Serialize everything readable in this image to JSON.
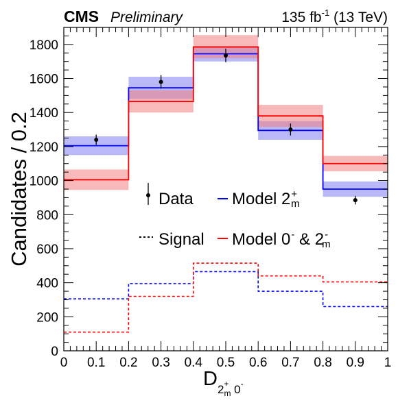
{
  "header": {
    "experiment": "CMS",
    "status": "Preliminary",
    "lumi_value": "135 fb",
    "lumi_exp": "-1",
    "lumi_energy": " (13 TeV)"
  },
  "axes": {
    "ylabel": "Candidates / 0.2",
    "xlabel_main": "D",
    "xlabel_sub_a": "2",
    "xlabel_sub_a_sup": "+",
    "xlabel_sub_a_sub": "m",
    "xlabel_sub_b": " 0",
    "xlabel_sub_b_sup": "-"
  },
  "legend": {
    "data": "Data",
    "signal": "Signal",
    "model_2m": "Model 2",
    "model_2m_sup": "+",
    "model_2m_sub": "m",
    "model_0_2m_a": "Model 0",
    "model_0_2m_a_sup": "-",
    "model_0_2m_b": " & 2",
    "model_0_2m_b_sup": "-",
    "model_0_2m_b_sub": "m"
  },
  "colors": {
    "blue": "#0000ff",
    "red": "#ff0000",
    "blue_band": "#8080f0",
    "red_band": "#f08080",
    "data": "#000000"
  },
  "chart_data": {
    "type": "bar",
    "xlim": [
      0,
      1
    ],
    "ylim": [
      0,
      1900
    ],
    "xticks": [
      0,
      0.1,
      0.2,
      0.3,
      0.4,
      0.5,
      0.6,
      0.7,
      0.8,
      0.9,
      1
    ],
    "xtick_labels": [
      "0",
      "0.1",
      "0.2",
      "0.3",
      "0.4",
      "0.5",
      "0.6",
      "0.7",
      "0.8",
      "0.9",
      "1"
    ],
    "yticks": [
      0,
      200,
      400,
      600,
      800,
      1000,
      1200,
      1400,
      1600,
      1800
    ],
    "ytick_labels": [
      "0",
      "200",
      "400",
      "600",
      "800",
      "1000",
      "1200",
      "1400",
      "1600",
      "1800"
    ],
    "bin_edges": [
      0,
      0.2,
      0.4,
      0.6,
      0.8,
      1.0
    ],
    "series": [
      {
        "name": "Data",
        "style": "points",
        "x": [
          0.1,
          0.3,
          0.5,
          0.7,
          0.9
        ],
        "values": [
          1240,
          1580,
          1735,
          1300,
          885
        ],
        "errors": [
          30,
          40,
          40,
          35,
          25
        ]
      },
      {
        "name": "Model 2m+",
        "style": "histogram",
        "color": "blue",
        "values": [
          1205,
          1545,
          1745,
          1295,
          950
        ],
        "band_lo": [
          1150,
          1480,
          1700,
          1240,
          905
        ],
        "band_hi": [
          1260,
          1610,
          1790,
          1350,
          995
        ]
      },
      {
        "name": "Model 0- & 2m-",
        "style": "histogram",
        "color": "red",
        "values": [
          1005,
          1465,
          1785,
          1380,
          1100
        ],
        "band_lo": [
          945,
          1400,
          1720,
          1315,
          1055
        ],
        "band_hi": [
          1065,
          1530,
          1855,
          1445,
          1145
        ]
      },
      {
        "name": "Signal (Model 2m+)",
        "style": "dashed",
        "color": "blue",
        "values": [
          305,
          395,
          465,
          350,
          260
        ]
      },
      {
        "name": "Signal (Model 0- & 2m-)",
        "style": "dashed",
        "color": "red",
        "values": [
          110,
          320,
          515,
          440,
          405
        ]
      }
    ]
  }
}
